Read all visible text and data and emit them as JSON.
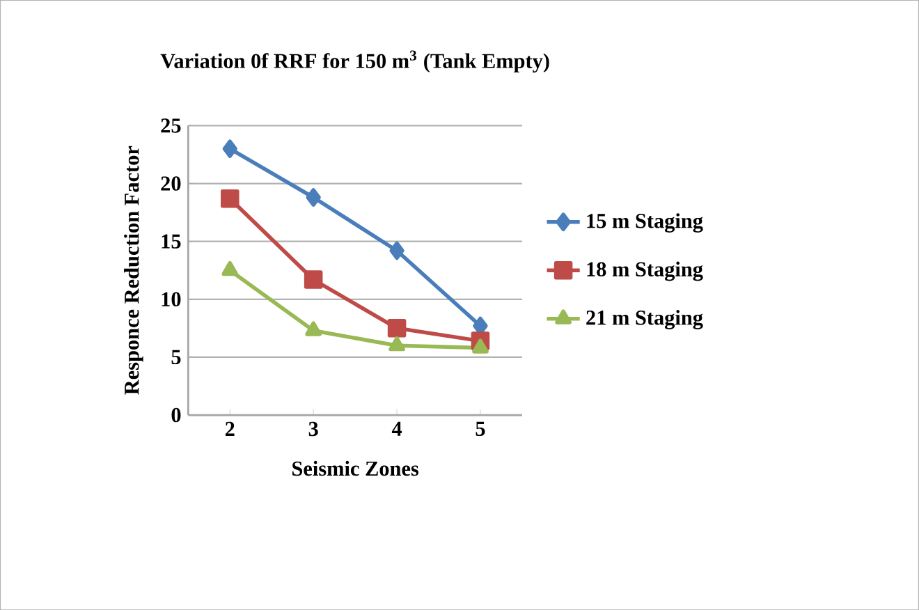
{
  "chart_data": {
    "type": "line",
    "title": "Variation 0f RRF for 150 m$^{3}$ (Tank Empty)",
    "xlabel": "Seismic Zones",
    "ylabel": "Responce Reduction Factor",
    "categories": [
      "2",
      "3",
      "4",
      "5"
    ],
    "series": [
      {
        "name": "15 m Staging",
        "color": "#4a7ebb",
        "marker": "diamond",
        "values": [
          23,
          18.8,
          14.2,
          7.7
        ]
      },
      {
        "name": "18 m Staging",
        "color": "#be4b48",
        "marker": "square",
        "values": [
          18.7,
          11.7,
          7.5,
          6.4
        ]
      },
      {
        "name": "21 m Staging",
        "color": "#98b954",
        "marker": "triangle",
        "values": [
          12.5,
          7.3,
          6.0,
          5.8
        ]
      }
    ],
    "ylim": [
      0,
      25
    ],
    "yticks": [
      0,
      5,
      10,
      15,
      20,
      25
    ],
    "grid": "y",
    "legend": "right"
  }
}
